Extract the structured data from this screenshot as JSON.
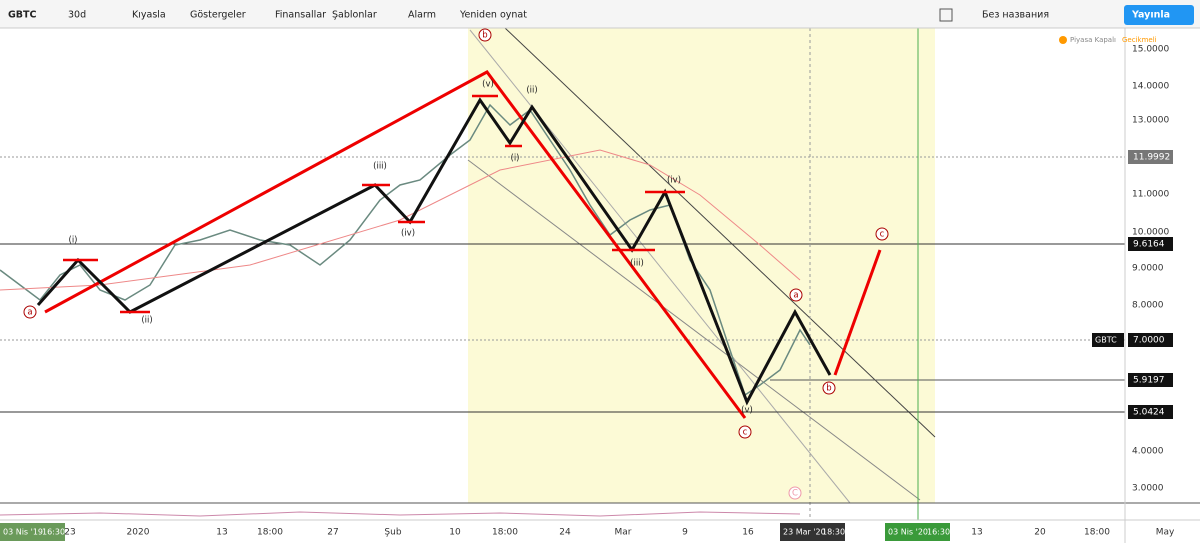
{
  "toolbar": {
    "symbol": "GBTC",
    "interval": "30d",
    "items": [
      "Kıyasla",
      "Göstergeler",
      "Finansallar",
      "Şablonlar",
      "Alarm",
      "Yeniden oynat"
    ],
    "layout_name": "Без названия",
    "publish": "Yayınla"
  },
  "status": {
    "market": "Piyasa Kapalı",
    "delay": "Gecikmeli"
  },
  "price_axis": {
    "ticks": [
      "15.0000",
      "14.0000",
      "13.0000",
      "11.0000",
      "10.0000",
      "9.0000",
      "8.0000",
      "4.0000",
      "3.0000"
    ],
    "markers": [
      {
        "label": "11.9992"
      },
      {
        "label": "9.6164"
      },
      {
        "symbol": "GBTC",
        "label": "7.0000"
      },
      {
        "label": "5.9197"
      },
      {
        "label": "5.0424"
      }
    ]
  },
  "time_axis": {
    "ticks": [
      "23",
      "2020",
      "13",
      "18:00",
      "27",
      "Şub",
      "10",
      "18:00",
      "24",
      "Mar",
      "9",
      "16",
      "13",
      "20",
      "18:00",
      "May"
    ],
    "markers": [
      {
        "date": "03 Nis '19",
        "time": "16:30"
      },
      {
        "date": "23 Mar '20",
        "time": "18:30"
      },
      {
        "date": "03 Nis '20",
        "time": "16:30"
      }
    ]
  },
  "waves": [
    "a",
    "(i)",
    "(ii)",
    "(iii)",
    "(iv)",
    "b",
    "(v)",
    "(i)",
    "(ii)",
    "(iii)",
    "(iv)",
    "(v)",
    "c",
    "a",
    "b",
    "c",
    "C"
  ]
}
